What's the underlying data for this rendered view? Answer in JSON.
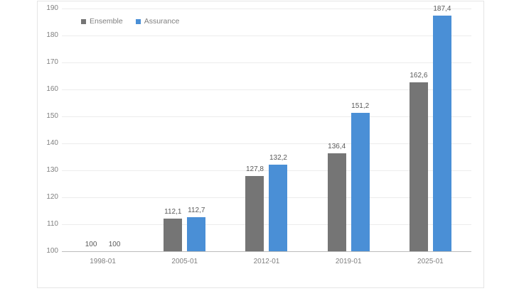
{
  "chart_data": {
    "type": "bar",
    "title": "",
    "categories": [
      "1998-01",
      "2005-01",
      "2012-01",
      "2019-01",
      "2025-01"
    ],
    "series": [
      {
        "name": "Ensemble",
        "color": "#757575",
        "values": [
          100,
          112.1,
          127.8,
          136.4,
          162.6
        ],
        "value_labels": [
          "100",
          "112,1",
          "127,8",
          "136,4",
          "162,6"
        ]
      },
      {
        "name": "Assurance",
        "color": "#4a8fd6",
        "values": [
          100,
          112.7,
          132.2,
          151.2,
          187.4
        ],
        "value_labels": [
          "100",
          "112,7",
          "132,2",
          "151,2",
          "187,4"
        ]
      }
    ],
    "xlabel": "",
    "ylabel": "",
    "ylim": [
      100,
      190
    ],
    "ytick_step": 10,
    "yticks": [
      100,
      110,
      120,
      130,
      140,
      150,
      160,
      170,
      180,
      190
    ],
    "baseline_value": 100,
    "grid": true,
    "legend_position": "top-left",
    "axis_text_color": "#7f7f7f",
    "value_label_color": "#595959",
    "gridline_color": "#ececec",
    "baseline_color": "#bdbdbd"
  }
}
